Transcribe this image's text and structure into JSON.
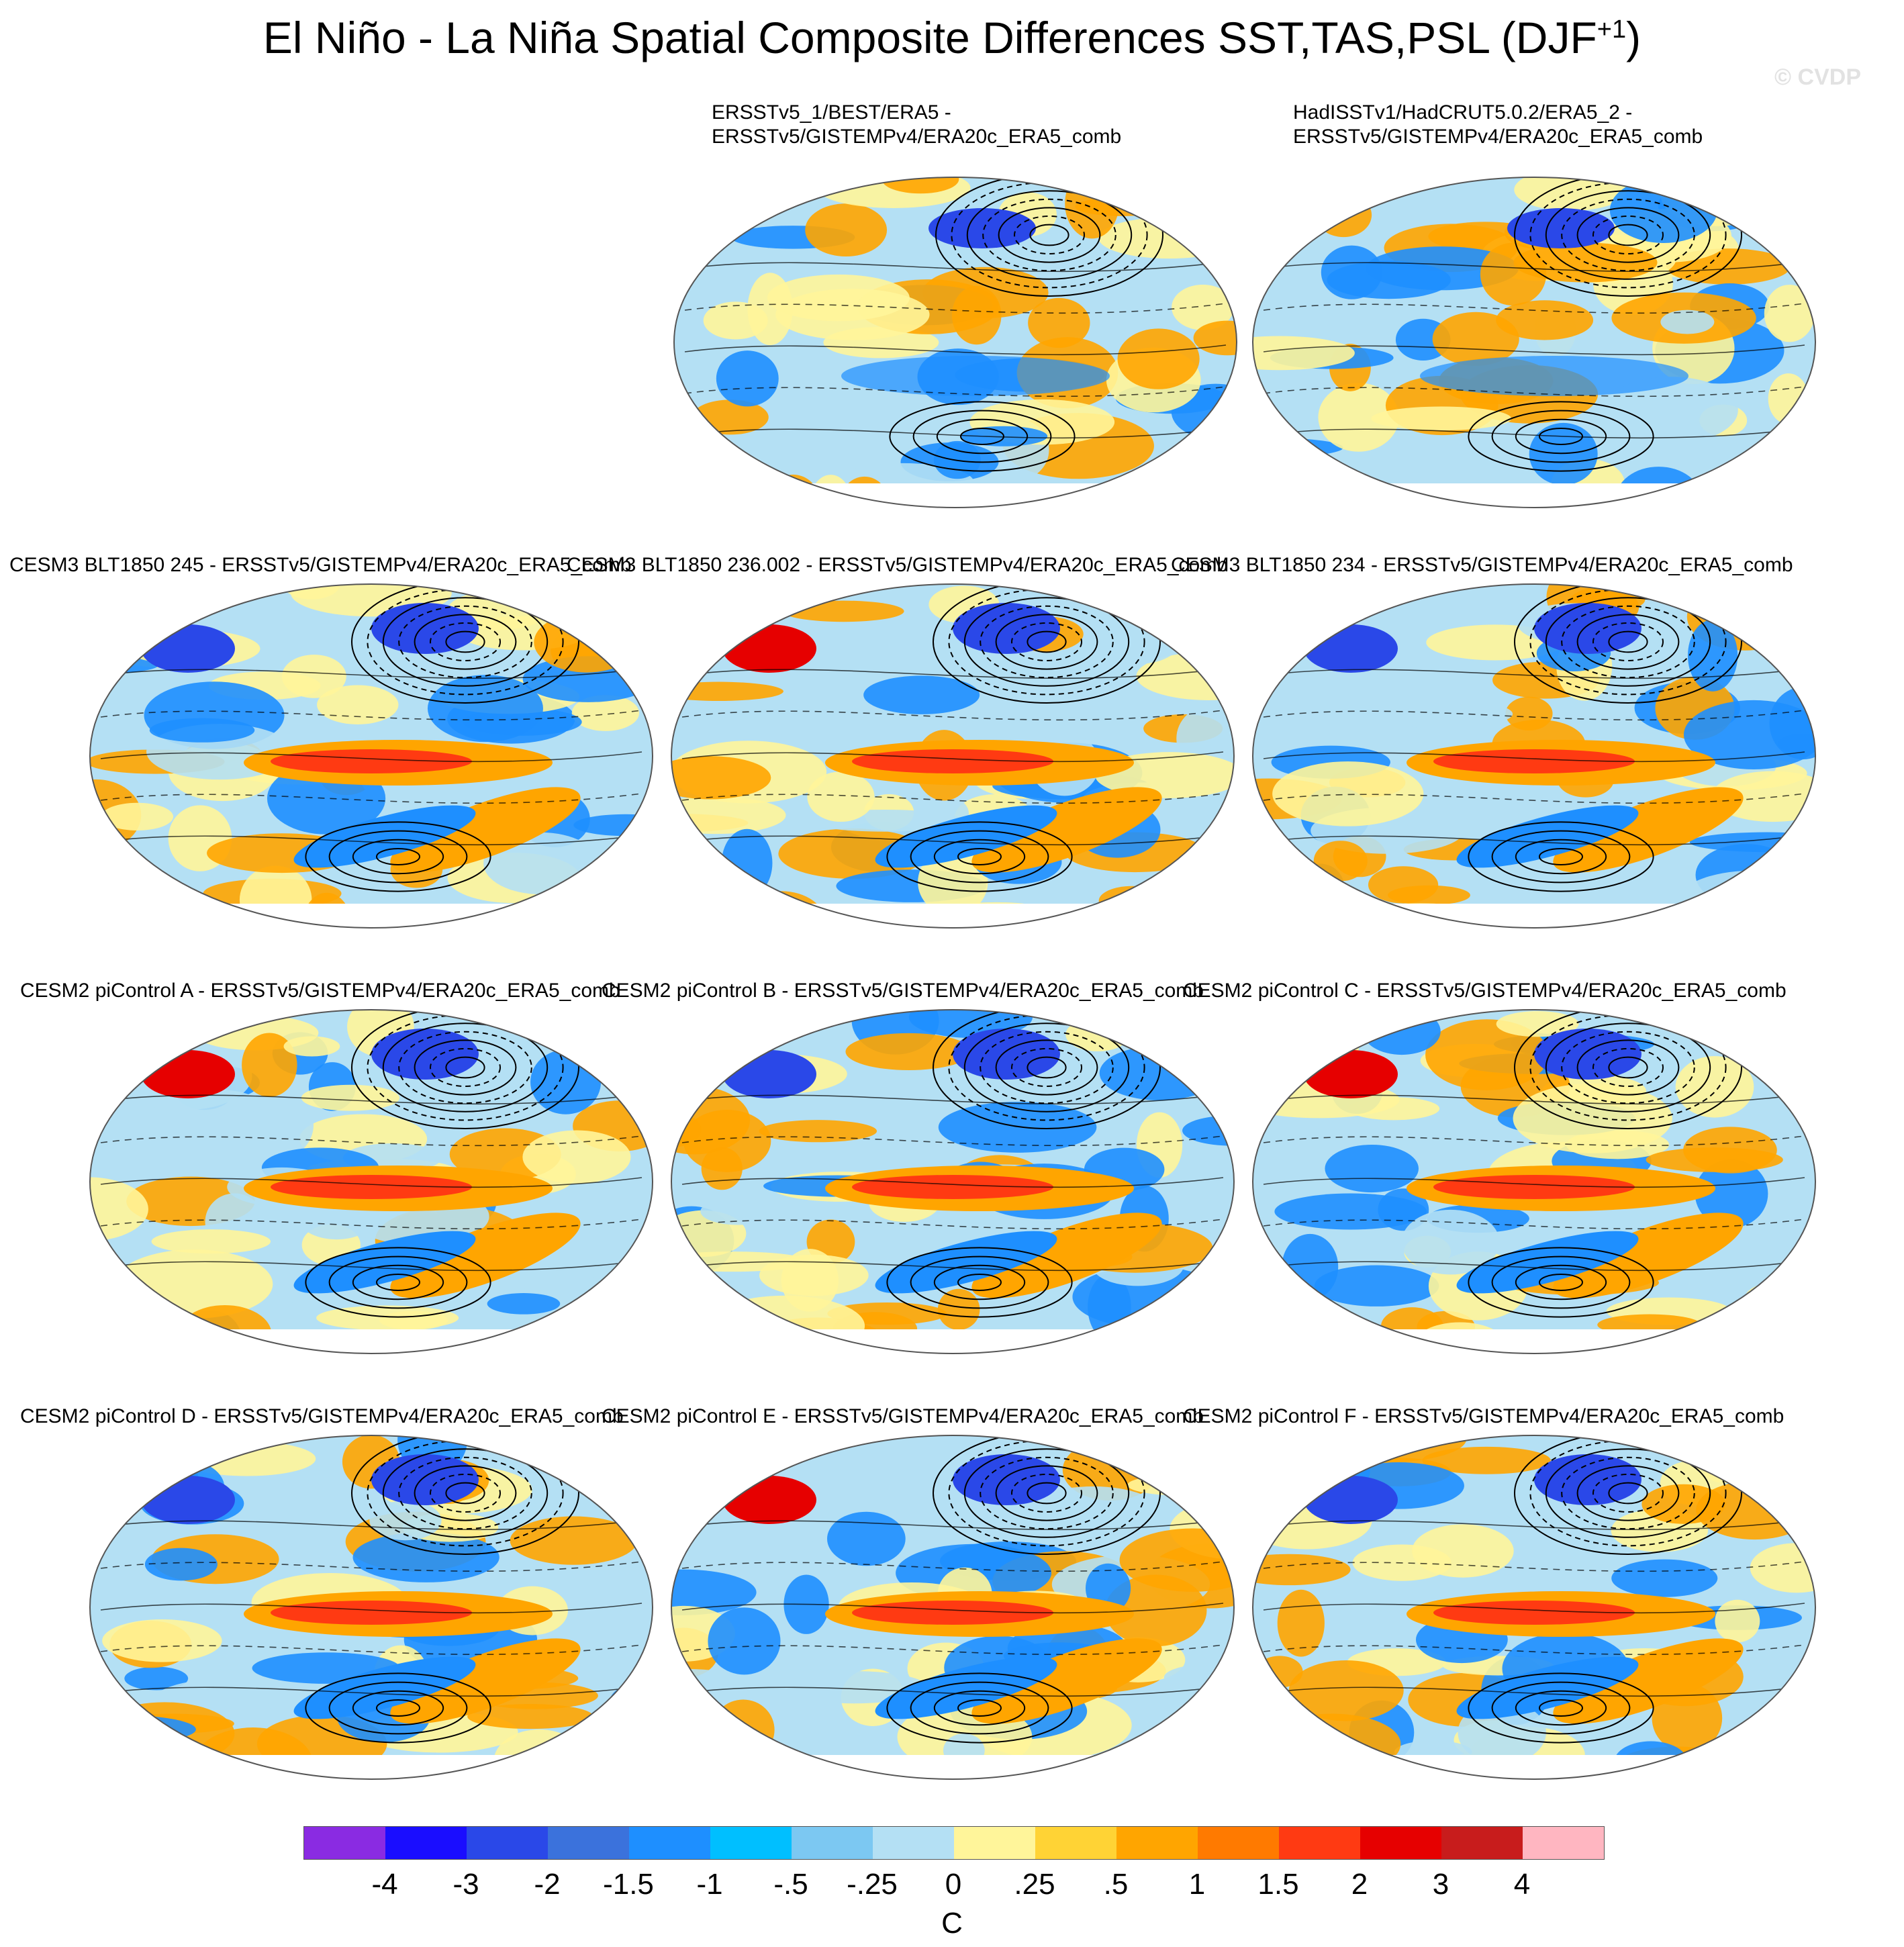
{
  "title": {
    "main": "El Niño - La Niña Spatial Composite Differences SST,TAS,PSL (DJF",
    "superscript": "+1",
    "close": ")"
  },
  "watermark": "© CVDP",
  "panels": [
    {
      "id": "obs1",
      "line1": "ERSSTv5_1/BEST/ERA5 -",
      "line2": "ERSSTv5/GISTEMPv4/ERA20c_ERA5_comb"
    },
    {
      "id": "obs2",
      "line1": "HadISSTv1/HadCRUT5.0.2/ERA5_2 -",
      "line2": "ERSSTv5/GISTEMPv4/ERA20c_ERA5_comb"
    },
    {
      "id": "blt245",
      "line1": "CESM3 BLT1850 245 - ERSSTv5/GISTEMPv4/ERA20c_ERA5_comb"
    },
    {
      "id": "blt236",
      "line1": "CESM3 BLT1850 236.002 - ERSSTv5/GISTEMPv4/ERA20c_ERA5_comb"
    },
    {
      "id": "blt234",
      "line1": "CESM3 BLT1850 234 - ERSSTv5/GISTEMPv4/ERA20c_ERA5_comb"
    },
    {
      "id": "picA",
      "line1": "CESM2 piControl A - ERSSTv5/GISTEMPv4/ERA20c_ERA5_comb"
    },
    {
      "id": "picB",
      "line1": "CESM2 piControl B - ERSSTv5/GISTEMPv4/ERA20c_ERA5_comb"
    },
    {
      "id": "picC",
      "line1": "CESM2 piControl C - ERSSTv5/GISTEMPv4/ERA20c_ERA5_comb"
    },
    {
      "id": "picD",
      "line1": "CESM2 piControl D - ERSSTv5/GISTEMPv4/ERA20c_ERA5_comb"
    },
    {
      "id": "picE",
      "line1": "CESM2 piControl E - ERSSTv5/GISTEMPv4/ERA20c_ERA5_comb"
    },
    {
      "id": "picF",
      "line1": "CESM2 piControl F - ERSSTv5/GISTEMPv4/ERA20c_ERA5_comb"
    }
  ],
  "colorbar": {
    "colors": [
      "#8a2be2",
      "#1a0dff",
      "#2a48e8",
      "#3b72dc",
      "#1e8fff",
      "#00bfff",
      "#7cc8f2",
      "#b4e0f4",
      "#fff59a",
      "#ffd335",
      "#ffa500",
      "#ff7a00",
      "#ff3a12",
      "#e60000",
      "#c81c1c",
      "#ffb6c1"
    ],
    "labels": [
      "-4",
      "-3",
      "-2",
      "-1.5",
      "-1",
      "-.5",
      "-.25",
      "0",
      ".25",
      ".5",
      "1",
      "1.5",
      "2",
      "3",
      "4"
    ],
    "units": "C"
  },
  "palette": {
    "sea_cool": "#b4e0f4",
    "sea_warm": "#fff59a",
    "mid_blue": "#1e8fff",
    "deep_blue": "#2a48e8",
    "orange": "#ffa500",
    "red": "#ff3a12",
    "dark_red": "#e60000",
    "contour": "#000000"
  }
}
